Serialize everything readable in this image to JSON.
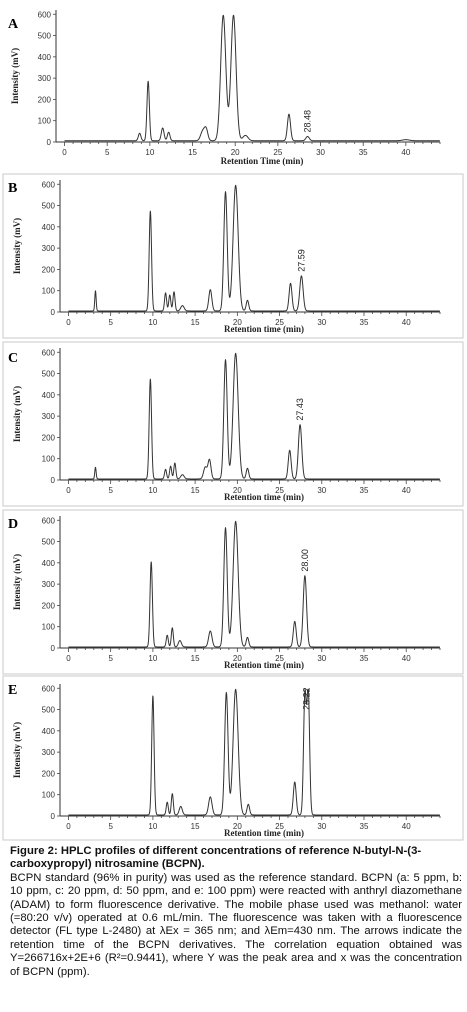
{
  "figure": {
    "caption_title": "Figure 2: HPLC profiles of different concentrations of reference N-butyl-N-(3-carboxypropyl) nitrosamine (BCPN).",
    "caption_body": "BCPN standard (96% in purity) was used as the reference standard. BCPN (a: 5 ppm, b: 10 ppm, c: 20 ppm, d: 50 ppm, and e: 100 ppm) were reacted with anthryl diazomethane (ADAM) to form fluorescence derivative. The mobile phase used was methanol: water (=80:20 v/v) operated at 0.6 mL/min. The fluorescence was taken with a fluorescence detector (FL type L-2480) at λEx = 365 nm; and λEm=430 nm. The arrows indicate the retention time of the BCPN derivatives. The correlation equation obtained was Y=266716x+2E+6 (R²=0.9441), where Y was the peak area and x was the concentration of BCPN (ppm)."
  },
  "chart_data": [
    {
      "type": "line",
      "panel": "A",
      "xlabel": "Retention Time (min)",
      "ylabel": "Intensity (mV)",
      "xlim": [
        -1,
        44
      ],
      "ylim": [
        0,
        620
      ],
      "xticks": [
        0,
        5,
        10,
        15,
        20,
        25,
        30,
        35,
        40
      ],
      "yticks": [
        0,
        100,
        200,
        300,
        400,
        500,
        600
      ],
      "annotation": {
        "text": "28.48",
        "x": 28.48
      },
      "baseline": 6,
      "peaks": [
        [
          8.8,
          35,
          0.15
        ],
        [
          9.8,
          280,
          0.14
        ],
        [
          11.5,
          60,
          0.16
        ],
        [
          12.2,
          40,
          0.15
        ],
        [
          16.2,
          45,
          0.25
        ],
        [
          16.6,
          50,
          0.2
        ],
        [
          18.6,
          590,
          0.3
        ],
        [
          19.8,
          590,
          0.3
        ],
        [
          21.2,
          25,
          0.3
        ],
        [
          26.3,
          125,
          0.18
        ],
        [
          28.48,
          20,
          0.2
        ],
        [
          40,
          5,
          0.4
        ]
      ]
    },
    {
      "type": "line",
      "panel": "B",
      "xlabel": "Retention time (min)",
      "ylabel": "Intensity (mV)",
      "xlim": [
        -1,
        44
      ],
      "ylim": [
        0,
        620
      ],
      "xticks": [
        0,
        5,
        10,
        15,
        20,
        25,
        30,
        35,
        40
      ],
      "yticks": [
        0,
        100,
        200,
        300,
        400,
        500,
        600
      ],
      "annotation": {
        "text": "27.59",
        "x": 27.59
      },
      "baseline": 5,
      "peaks": [
        [
          3.2,
          95,
          0.08
        ],
        [
          9.7,
          470,
          0.14
        ],
        [
          11.5,
          85,
          0.12
        ],
        [
          12.0,
          75,
          0.12
        ],
        [
          12.5,
          90,
          0.12
        ],
        [
          13.5,
          25,
          0.2
        ],
        [
          16.8,
          100,
          0.18
        ],
        [
          18.6,
          560,
          0.2
        ],
        [
          19.8,
          590,
          0.3
        ],
        [
          21.2,
          50,
          0.15
        ],
        [
          26.3,
          130,
          0.17
        ],
        [
          27.59,
          165,
          0.2
        ]
      ]
    },
    {
      "type": "line",
      "panel": "C",
      "xlabel": "Retention time (min)",
      "ylabel": "Intensity (mV)",
      "xlim": [
        -1,
        44
      ],
      "ylim": [
        0,
        620
      ],
      "xticks": [
        0,
        5,
        10,
        15,
        20,
        25,
        30,
        35,
        40
      ],
      "yticks": [
        0,
        100,
        200,
        300,
        400,
        500,
        600
      ],
      "annotation": {
        "text": "27.43",
        "x": 27.43
      },
      "baseline": 5,
      "peaks": [
        [
          3.2,
          55,
          0.08
        ],
        [
          9.7,
          470,
          0.14
        ],
        [
          11.5,
          45,
          0.12
        ],
        [
          12.1,
          60,
          0.12
        ],
        [
          12.6,
          75,
          0.12
        ],
        [
          13.5,
          20,
          0.2
        ],
        [
          16.2,
          55,
          0.2
        ],
        [
          16.7,
          90,
          0.18
        ],
        [
          18.6,
          560,
          0.2
        ],
        [
          19.8,
          590,
          0.3
        ],
        [
          21.2,
          50,
          0.15
        ],
        [
          26.2,
          135,
          0.17
        ],
        [
          27.43,
          255,
          0.2
        ]
      ]
    },
    {
      "type": "line",
      "panel": "D",
      "xlabel": "Retention time (min)",
      "ylabel": "Intensity (mV)",
      "xlim": [
        -1,
        44
      ],
      "ylim": [
        0,
        620
      ],
      "xticks": [
        0,
        5,
        10,
        15,
        20,
        25,
        30,
        35,
        40
      ],
      "yticks": [
        0,
        100,
        200,
        300,
        400,
        500,
        600
      ],
      "annotation": {
        "text": "28.00",
        "x": 28.0
      },
      "baseline": 5,
      "peaks": [
        [
          9.8,
          400,
          0.14
        ],
        [
          11.7,
          55,
          0.12
        ],
        [
          12.3,
          90,
          0.12
        ],
        [
          13.2,
          30,
          0.18
        ],
        [
          16.8,
          75,
          0.2
        ],
        [
          18.6,
          560,
          0.2
        ],
        [
          19.8,
          590,
          0.3
        ],
        [
          21.2,
          45,
          0.15
        ],
        [
          26.8,
          120,
          0.17
        ],
        [
          28.0,
          335,
          0.2
        ]
      ]
    },
    {
      "type": "line",
      "panel": "E",
      "xlabel": "Retention time (min)",
      "ylabel": "Intensity (mV)",
      "xlim": [
        -1,
        44
      ],
      "ylim": [
        0,
        620
      ],
      "xticks": [
        0,
        5,
        10,
        15,
        20,
        25,
        30,
        35,
        40
      ],
      "yticks": [
        0,
        100,
        200,
        300,
        400,
        500,
        600
      ],
      "annotation": {
        "text": "28.22",
        "x": 28.22
      },
      "baseline": 5,
      "peaks": [
        [
          10.0,
          560,
          0.14
        ],
        [
          11.7,
          60,
          0.12
        ],
        [
          12.3,
          100,
          0.12
        ],
        [
          13.3,
          40,
          0.18
        ],
        [
          16.8,
          85,
          0.2
        ],
        [
          18.7,
          575,
          0.2
        ],
        [
          19.8,
          590,
          0.3
        ],
        [
          21.3,
          50,
          0.15
        ],
        [
          26.8,
          155,
          0.17
        ],
        [
          28.0,
          560,
          0.16
        ],
        [
          28.4,
          575,
          0.16
        ]
      ]
    }
  ]
}
